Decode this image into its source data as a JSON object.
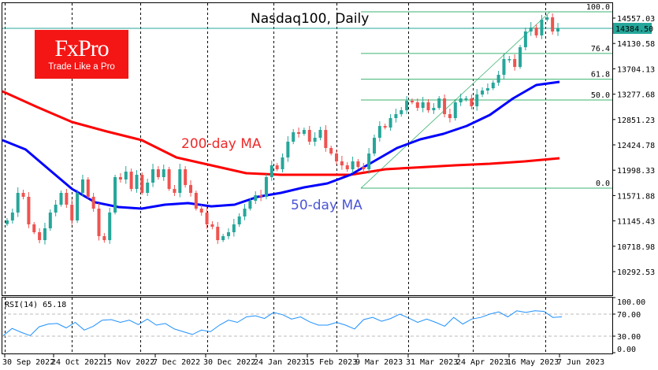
{
  "chart_data": {
    "type": "candlestick",
    "title": "Nasdaq100, Daily",
    "symbol_current_price": "14384.50",
    "price_ticks": [
      "14557.03",
      "14130.58",
      "13704.13",
      "13277.68",
      "12851.23",
      "12424.78",
      "11998.33",
      "11571.88",
      "11145.43",
      "10718.98",
      "10292.53"
    ],
    "x_tick_labels": [
      "30 Sep 2022",
      "24 Oct 2022",
      "15 Nov 2022",
      "7 Dec 2022",
      "30 Dec 2022",
      "24 Jan 2023",
      "15 Feb 2023",
      "9 Mar 2023",
      "31 Mar 2023",
      "24 Apr 2023",
      "16 May 2023",
      "7 Jun 2023"
    ],
    "closes": [
      11153,
      11286,
      11617,
      11551,
      11087,
      10955,
      10822,
      11021,
      11286,
      11418,
      11617,
      11418,
      11153,
      11617,
      11842,
      11551,
      11352,
      10889,
      10822,
      11286,
      11882,
      11842,
      11974,
      11683,
      11921,
      11617,
      11789,
      12014,
      11882,
      12014,
      11683,
      11617,
      12014,
      11749,
      11617,
      11352,
      11286,
      11087,
      11047,
      10822,
      10889,
      10955,
      11087,
      11220,
      11352,
      11484,
      11577,
      11551,
      11882,
      12080,
      12014,
      12213,
      12478,
      12637,
      12610,
      12676,
      12478,
      12544,
      12676,
      12372,
      12279,
      12147,
      12080,
      12014,
      12147,
      12054,
      12014,
      12279,
      12544,
      12742,
      12716,
      12875,
      12941,
      13007,
      13166,
      13140,
      13047,
      13140,
      13007,
      13047,
      13206,
      12941,
      12875,
      13140,
      13206,
      13206,
      13074,
      13272,
      13339,
      13378,
      13471,
      13603,
      13868,
      13868,
      13736,
      14067,
      14332,
      14398,
      14266,
      14531,
      14570,
      14332,
      14384
    ],
    "ma200": {
      "label": "200-day MA",
      "values": [
        13325,
        13060,
        12809,
        12650,
        12504,
        12213,
        12080,
        11948,
        11921,
        11921,
        11921,
        12014,
        12047,
        12080,
        12107,
        12147,
        12200
      ]
    },
    "ma50": {
      "label": "50-day MA",
      "values": [
        12504,
        12346,
        12014,
        11683,
        11458,
        11378,
        11352,
        11418,
        11445,
        11391,
        11418,
        11551,
        11617,
        11710,
        11776,
        11921,
        12147,
        12372,
        12518,
        12610,
        12742,
        12928,
        13206,
        13431,
        13484
      ]
    },
    "fibonacci": {
      "low": 11696,
      "high": 14663,
      "levels": [
        {
          "ratio": 1.0,
          "label": "100.0"
        },
        {
          "ratio": 0.764,
          "label": "76.4"
        },
        {
          "ratio": 0.618,
          "label": "61.8"
        },
        {
          "ratio": 0.5,
          "label": "50.0"
        },
        {
          "ratio": 0.0,
          "label": "0.0"
        }
      ]
    },
    "rsi": {
      "label": "RSI(14) 65.18",
      "ticks": [
        "100.00",
        "70.00",
        "30.00",
        "0.00"
      ],
      "levels": [
        70,
        30
      ],
      "values": [
        31,
        44,
        37,
        31,
        47,
        52,
        53,
        45,
        55,
        41,
        48,
        59,
        60,
        55,
        59,
        51,
        61,
        50,
        53,
        43,
        38,
        33,
        41,
        38,
        50,
        59,
        55,
        65,
        67,
        62,
        73,
        69,
        61,
        65,
        56,
        50,
        50,
        55,
        50,
        43,
        60,
        64,
        57,
        62,
        70,
        63,
        55,
        61,
        55,
        48,
        64,
        52,
        61,
        64,
        70,
        74,
        65,
        76,
        73,
        76,
        75,
        64,
        65
      ]
    },
    "colors": {
      "bull": "#26a69a",
      "bear": "#ef5350",
      "ma200": "#ff0000",
      "ma50": "#0000ff",
      "fib": "#3cb371",
      "rsi": "#1e90ff",
      "price_line": "#26a69a"
    }
  },
  "logo": {
    "brand": "FxPro",
    "tagline": "Trade Like a Pro"
  }
}
